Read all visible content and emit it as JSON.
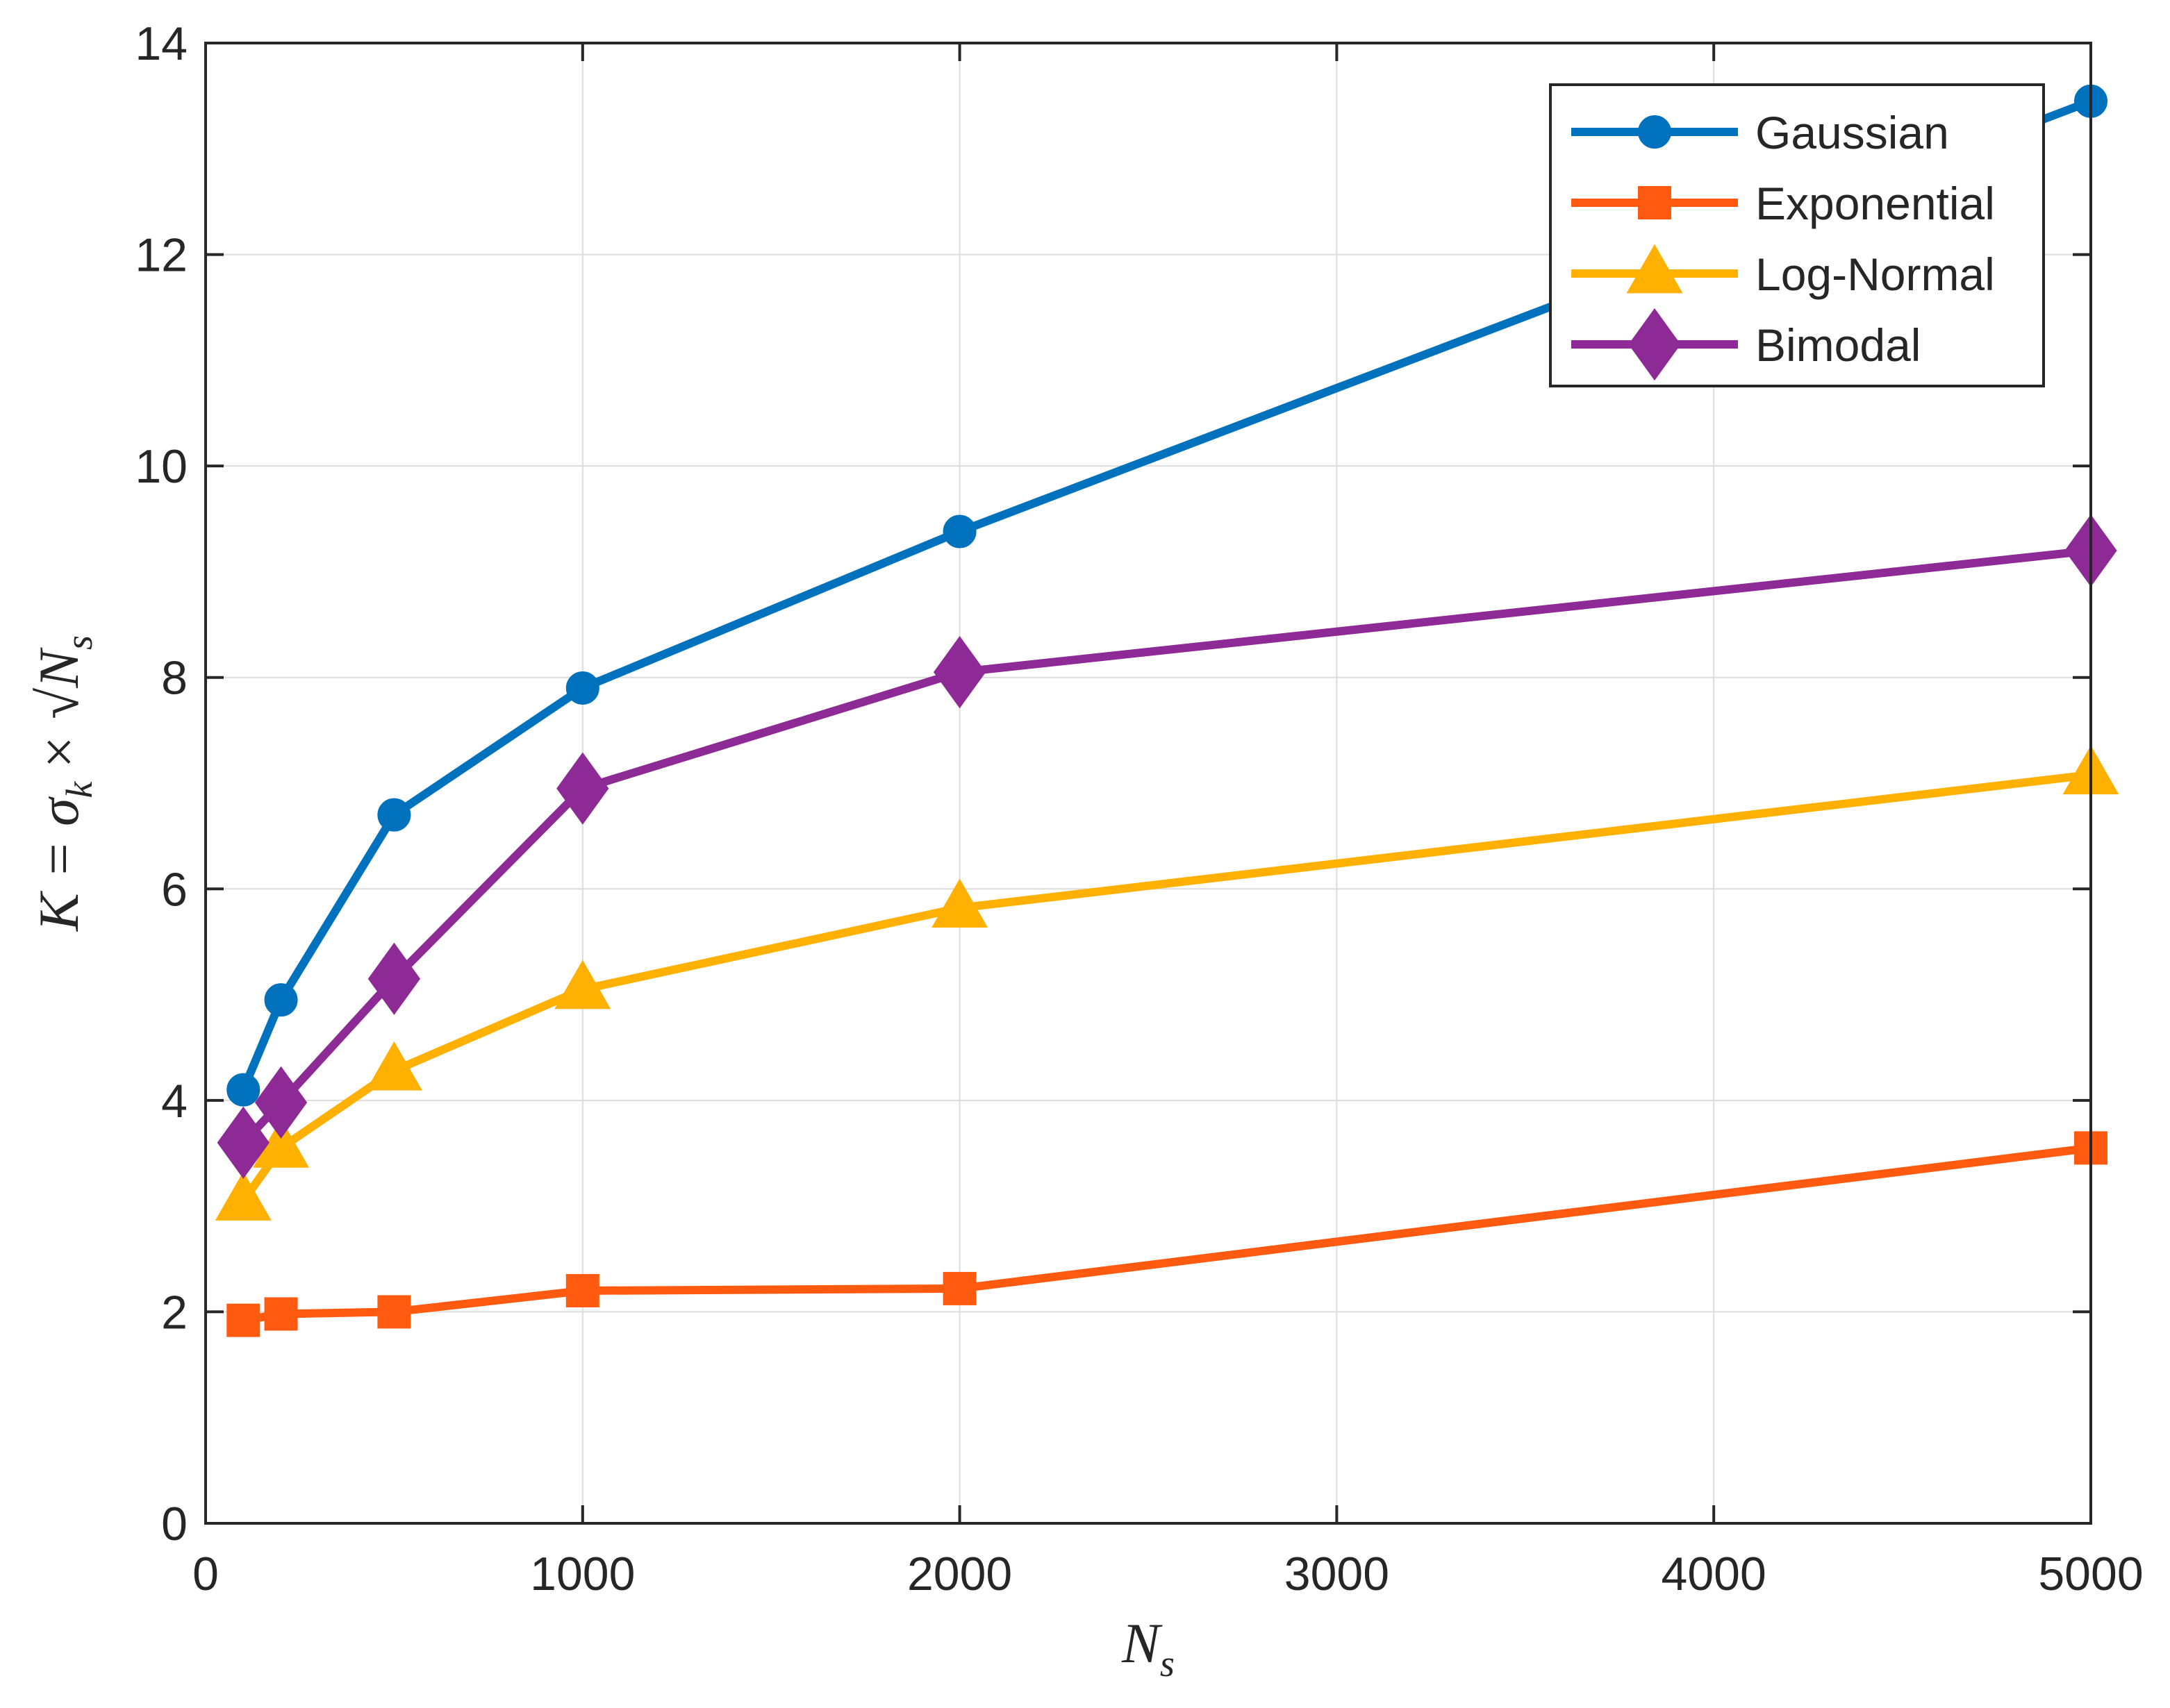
{
  "chart_data": {
    "type": "line",
    "title": "",
    "x": [
      100,
      200,
      500,
      1000,
      2000,
      5000
    ],
    "series": [
      {
        "name": "Gaussian",
        "color": "#0072BD",
        "marker": "circle",
        "values": [
          4.1,
          4.95,
          6.7,
          7.9,
          9.38,
          13.45
        ]
      },
      {
        "name": "Exponential",
        "color": "#FF5A0F",
        "marker": "square",
        "values": [
          1.92,
          1.98,
          2.0,
          2.2,
          2.22,
          3.55
        ]
      },
      {
        "name": "Log-Normal",
        "color": "#FFB000",
        "marker": "triangle",
        "values": [
          3.05,
          3.55,
          4.28,
          5.05,
          5.82,
          7.08
        ]
      },
      {
        "name": "Bimodal",
        "color": "#8E2A96",
        "marker": "diamond",
        "values": [
          3.6,
          3.98,
          5.15,
          6.95,
          8.05,
          9.2
        ]
      }
    ],
    "xlim": [
      0,
      5000
    ],
    "ylim": [
      0,
      14
    ],
    "xticks": [
      "0",
      "1000",
      "2000",
      "3000",
      "4000",
      "5000"
    ],
    "yticks": [
      "0",
      "2",
      "4",
      "6",
      "8",
      "10",
      "12",
      "14"
    ],
    "xlabel": "N",
    "xlabel_sub": "s",
    "ylabel": "K = σ",
    "ylabel_sub": "k",
    "ylabel_rest": "× √N",
    "ylabel_rest_sub": "s",
    "grid": true,
    "legend_position": "top-right"
  }
}
